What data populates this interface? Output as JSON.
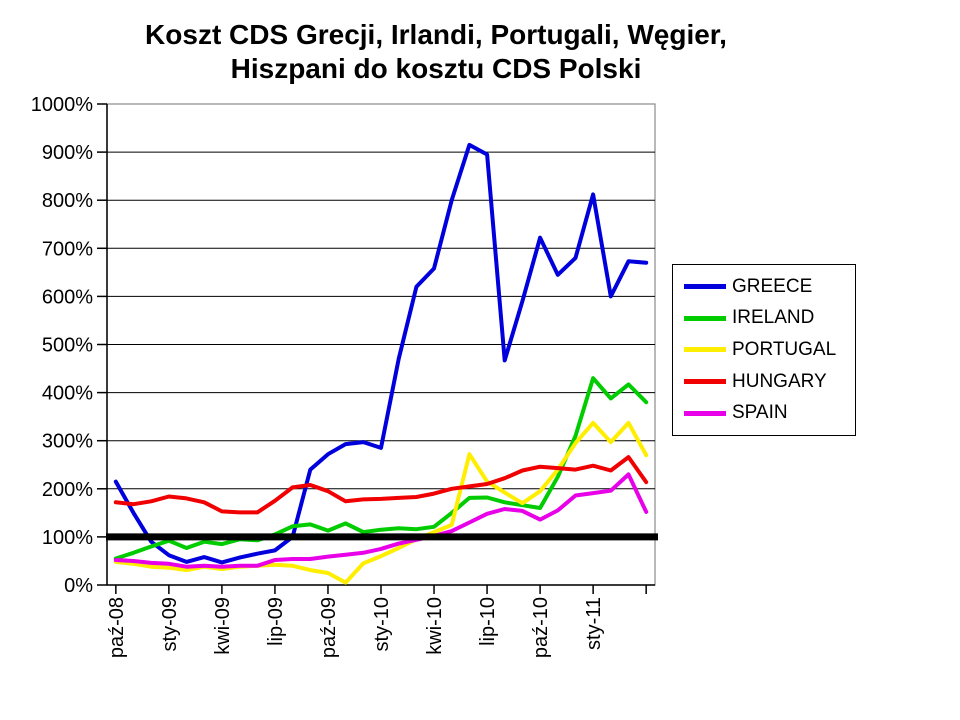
{
  "title": {
    "line1": "Koszt CDS Grecji, Irlandi, Portugali, Węgier,",
    "line2": "Hiszpani do kosztu CDS Polski"
  },
  "chart_data": {
    "type": "line",
    "title": "Koszt CDS Grecji, Irlandi, Portugali, Węgier, Hiszpani do kosztu CDS Polski",
    "xlabel": "",
    "ylabel": "",
    "ylim": [
      0,
      1000
    ],
    "y_tick_step": 100,
    "y_tick_suffix": "%",
    "y_tick_labels": [
      "0%",
      "100%",
      "200%",
      "300%",
      "400%",
      "500%",
      "600%",
      "700%",
      "800%",
      "900%",
      "1000%"
    ],
    "n_points": 31,
    "x_tick_labels": [
      "paź-08",
      "sty-09",
      "kwi-09",
      "lip-09",
      "paź-09",
      "sty-10",
      "kwi-10",
      "lip-10",
      "paź-10",
      "sty-11"
    ],
    "x_label_interval": 3,
    "grid": "horizontal",
    "legend_position": "right",
    "reference_line": {
      "value": 100,
      "color": "#000000",
      "meaning": "Poland CDS = 100%"
    },
    "series": [
      {
        "name": "GREECE",
        "color": "#0000DD",
        "values": [
          215,
          150,
          90,
          62,
          48,
          58,
          47,
          57,
          65,
          72,
          100,
          240,
          272,
          293,
          297,
          285,
          470,
          620,
          658,
          800,
          915,
          895,
          467,
          590,
          722,
          645,
          680,
          812,
          600,
          673,
          670
        ]
      },
      {
        "name": "IRELAND",
        "color": "#00CC00",
        "values": [
          55,
          67,
          80,
          92,
          77,
          90,
          85,
          95,
          93,
          105,
          122,
          126,
          113,
          128,
          110,
          115,
          118,
          116,
          121,
          150,
          181,
          182,
          172,
          166,
          160,
          225,
          310,
          430,
          388,
          417,
          380
        ]
      },
      {
        "name": "PORTUGAL",
        "color": "#FFEE00",
        "values": [
          48,
          44,
          38,
          36,
          31,
          38,
          33,
          38,
          40,
          42,
          40,
          31,
          25,
          5,
          45,
          60,
          77,
          95,
          110,
          125,
          272,
          215,
          192,
          170,
          195,
          240,
          295,
          337,
          297,
          337,
          270
        ]
      },
      {
        "name": "HUNGARY",
        "color": "#F00000",
        "values": [
          172,
          168,
          174,
          184,
          180,
          172,
          153,
          151,
          151,
          175,
          203,
          208,
          195,
          174,
          178,
          179,
          181,
          183,
          190,
          200,
          205,
          210,
          222,
          238,
          246,
          243,
          240,
          248,
          238,
          266,
          214
        ]
      },
      {
        "name": "SPAIN",
        "color": "#E800E8",
        "values": [
          52,
          50,
          46,
          44,
          38,
          40,
          38,
          40,
          40,
          52,
          54,
          54,
          59,
          63,
          67,
          75,
          86,
          94,
          102,
          112,
          130,
          148,
          158,
          154,
          136,
          155,
          186,
          191,
          196,
          230,
          152
        ]
      }
    ]
  }
}
